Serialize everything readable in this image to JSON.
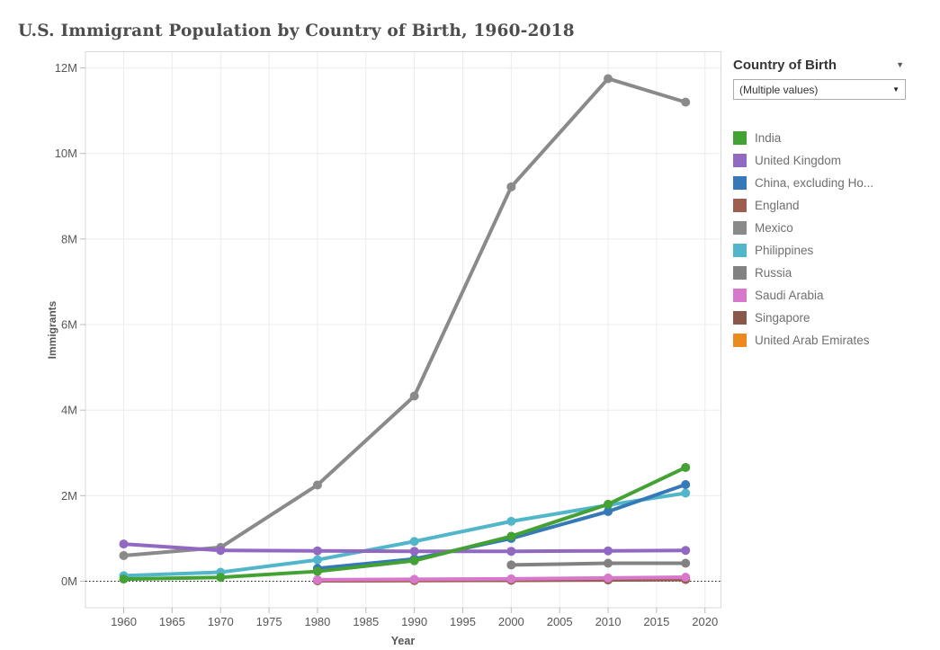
{
  "title": "U.S. Immigrant Population by Country of Birth, 1960-2018",
  "icons": {
    "caret_down": "▼"
  },
  "filter_panel": {
    "header": "Country of Birth",
    "dropdown_value": "(Multiple values)"
  },
  "chart_data": {
    "type": "line",
    "title": "U.S. Immigrant Population by Country of Birth, 1960-2018",
    "xlabel": "Year",
    "ylabel": "Immigrants",
    "x_ticks": [
      "1960",
      "1965",
      "1970",
      "1975",
      "1980",
      "1985",
      "1990",
      "1995",
      "2000",
      "2005",
      "2010",
      "2015",
      "2020"
    ],
    "x_tick_years": [
      1960,
      1965,
      1970,
      1975,
      1980,
      1985,
      1990,
      1995,
      2000,
      2005,
      2010,
      2015,
      2020
    ],
    "y_ticks": [
      "0M",
      "2M",
      "4M",
      "6M",
      "8M",
      "10M",
      "12M"
    ],
    "y_tick_values_millions": [
      0,
      2,
      4,
      6,
      8,
      10,
      12
    ],
    "xlim": [
      1956.05,
      2021.65
    ],
    "ylim_millions": [
      -0.62,
      12.38
    ],
    "grid": true,
    "zero_line": "dotted",
    "legend_position": "right",
    "series": [
      {
        "name": "India",
        "color": "#44a134",
        "points": [
          [
            1960,
            0.05
          ],
          [
            1970,
            0.09
          ],
          [
            1980,
            0.23
          ],
          [
            1990,
            0.48
          ],
          [
            2000,
            1.05
          ],
          [
            2010,
            1.8
          ],
          [
            2018,
            2.66
          ]
        ]
      },
      {
        "name": "United Kingdom",
        "color": "#9168c2",
        "points": [
          [
            1960,
            0.87
          ],
          [
            1970,
            0.72
          ],
          [
            1980,
            0.71
          ],
          [
            1990,
            0.7
          ],
          [
            2000,
            0.7
          ],
          [
            2010,
            0.71
          ],
          [
            2018,
            0.72
          ]
        ]
      },
      {
        "name": "China, excluding Ho...",
        "color": "#3579b8",
        "points": [
          [
            1980,
            0.3
          ],
          [
            1990,
            0.52
          ],
          [
            2000,
            1.0
          ],
          [
            2010,
            1.63
          ],
          [
            2018,
            2.26
          ]
        ]
      },
      {
        "name": "England",
        "color": "#9d5d4f",
        "points": [
          [
            1980,
            0.02
          ],
          [
            1990,
            0.025
          ],
          [
            2000,
            0.03
          ],
          [
            2010,
            0.04
          ],
          [
            2018,
            0.05
          ]
        ]
      },
      {
        "name": "Mexico",
        "color": "#8a8a8a",
        "points": [
          [
            1960,
            0.6
          ],
          [
            1970,
            0.79
          ],
          [
            1980,
            2.25
          ],
          [
            1990,
            4.33
          ],
          [
            2000,
            9.22
          ],
          [
            2010,
            11.75
          ],
          [
            2018,
            11.2
          ]
        ]
      },
      {
        "name": "Philippines",
        "color": "#52b6ca",
        "points": [
          [
            1960,
            0.13
          ],
          [
            1970,
            0.21
          ],
          [
            1980,
            0.5
          ],
          [
            1990,
            0.93
          ],
          [
            2000,
            1.4
          ],
          [
            2010,
            1.78
          ],
          [
            2018,
            2.06
          ]
        ]
      },
      {
        "name": "Russia",
        "color": "#828282",
        "points": [
          [
            2000,
            0.38
          ],
          [
            2010,
            0.42
          ],
          [
            2018,
            0.42
          ]
        ]
      },
      {
        "name": "Saudi Arabia",
        "color": "#d878cc",
        "points": [
          [
            1980,
            0.035
          ],
          [
            1990,
            0.045
          ],
          [
            2000,
            0.055
          ],
          [
            2010,
            0.075
          ],
          [
            2018,
            0.095
          ]
        ]
      },
      {
        "name": "Singapore",
        "color": "#8a574b",
        "points": [
          [
            1980,
            0.013
          ],
          [
            1990,
            0.018
          ],
          [
            2000,
            0.022
          ],
          [
            2010,
            0.03
          ],
          [
            2018,
            0.04
          ]
        ]
      },
      {
        "name": "United Arab Emirates",
        "color": "#ec8a20",
        "points": [
          [
            1980,
            0.01
          ],
          [
            1990,
            0.015
          ],
          [
            2000,
            0.025
          ],
          [
            2010,
            0.04
          ],
          [
            2018,
            0.06
          ]
        ]
      }
    ]
  }
}
